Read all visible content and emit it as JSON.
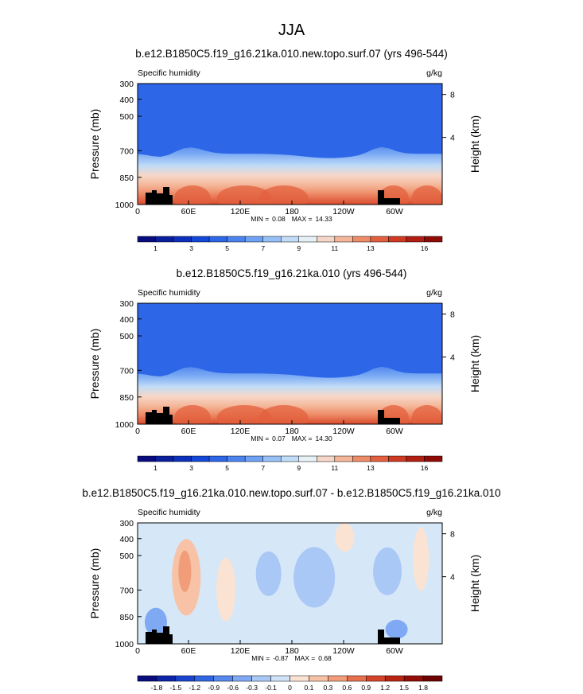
{
  "figure": {
    "title": "JJA",
    "field_label": "Specific humidity",
    "units": "g/kg",
    "ylabel": "Pressure (mb)",
    "ylabel_right": "Height (km)",
    "x_tick_labels": [
      "0",
      "60E",
      "120E",
      "180",
      "120W",
      "60W"
    ],
    "y_tick_labels": [
      "300",
      "400",
      "500",
      "700",
      "850",
      "1000"
    ],
    "height_tick_labels": [
      "8",
      "4"
    ]
  },
  "panels": [
    {
      "title": "b.e12.B1850C5.f19_g16.21ka.010.new.topo.surf.07 (yrs 496-544)",
      "min_label": "MIN =",
      "min_value": "0.08",
      "max_label": "MAX =",
      "max_value": "14.33",
      "colorbar_labels": [
        "1",
        "3",
        "5",
        "7",
        "9",
        "11",
        "13",
        "16"
      ]
    },
    {
      "title": "b.e12.B1850C5.f19_g16.21ka.010 (yrs 496-544)",
      "min_label": "MIN =",
      "min_value": "0.07",
      "max_label": "MAX =",
      "max_value": "14.30",
      "colorbar_labels": [
        "1",
        "3",
        "5",
        "7",
        "9",
        "11",
        "13",
        "16"
      ]
    },
    {
      "title": "b.e12.B1850C5.f19_g16.21ka.010.new.topo.surf.07 - b.e12.B1850C5.f19_g16.21ka.010",
      "min_label": "MIN =",
      "min_value": "-0.87",
      "max_label": "MAX =",
      "max_value": "0.68",
      "colorbar_labels": [
        "-1.8",
        "-1.5",
        "-1.2",
        "-0.9",
        "-0.6",
        "-0.3",
        "-0.1",
        "0",
        "0.1",
        "0.3",
        "0.6",
        "0.9",
        "1.2",
        "1.5",
        "1.8"
      ]
    }
  ],
  "chart_data": [
    {
      "type": "heatmap",
      "title": "b.e12.B1850C5.f19_g16.21ka.010.new.topo.surf.07 (yrs 496-544)",
      "variable": "Specific humidity",
      "units": "g/kg",
      "x_labels": [
        "0",
        "60E",
        "120E",
        "180",
        "120W",
        "60W"
      ],
      "y_levels_mb": [
        300,
        400,
        500,
        700,
        850,
        1000
      ],
      "ylabel": "Pressure (mb)",
      "y2label": "Height (km)",
      "colorbar_ticks": [
        1,
        3,
        5,
        7,
        9,
        11,
        13,
        16
      ],
      "colorbar_colors": [
        "#080c7e",
        "#0a1f9c",
        "#0c30bb",
        "#1448d6",
        "#2d66e6",
        "#4c84ef",
        "#6fa2f4",
        "#97c0f6",
        "#c1dcf7",
        "#e6f1f6",
        "#f6d7c7",
        "#f4b699",
        "#ee8c68",
        "#e3603e",
        "#cf3b22",
        "#b21e12",
        "#8f0b07"
      ],
      "min": 0.08,
      "max": 14.33
    },
    {
      "type": "heatmap",
      "title": "b.e12.B1850C5.f19_g16.21ka.010 (yrs 496-544)",
      "variable": "Specific humidity",
      "units": "g/kg",
      "x_labels": [
        "0",
        "60E",
        "120E",
        "180",
        "120W",
        "60W"
      ],
      "y_levels_mb": [
        300,
        400,
        500,
        700,
        850,
        1000
      ],
      "ylabel": "Pressure (mb)",
      "y2label": "Height (km)",
      "colorbar_ticks": [
        1,
        3,
        5,
        7,
        9,
        11,
        13,
        16
      ],
      "colorbar_colors": [
        "#080c7e",
        "#0a1f9c",
        "#0c30bb",
        "#1448d6",
        "#2d66e6",
        "#4c84ef",
        "#6fa2f4",
        "#97c0f6",
        "#c1dcf7",
        "#e6f1f6",
        "#f6d7c7",
        "#f4b699",
        "#ee8c68",
        "#e3603e",
        "#cf3b22",
        "#b21e12",
        "#8f0b07"
      ],
      "min": 0.07,
      "max": 14.3
    },
    {
      "type": "heatmap",
      "title": "b.e12.B1850C5.f19_g16.21ka.010.new.topo.surf.07 - b.e12.B1850C5.f19_g16.21ka.010",
      "variable": "Specific humidity",
      "units": "g/kg",
      "x_labels": [
        "0",
        "60E",
        "120E",
        "180",
        "120W",
        "60W"
      ],
      "y_levels_mb": [
        300,
        400,
        500,
        700,
        850,
        1000
      ],
      "ylabel": "Pressure (mb)",
      "y2label": "Height (km)",
      "colorbar_ticks": [
        -1.8,
        -1.5,
        -1.2,
        -0.9,
        -0.6,
        -0.3,
        -0.1,
        0,
        0.1,
        0.3,
        0.6,
        0.9,
        1.2,
        1.5,
        1.8
      ],
      "colorbar_colors": [
        "#080c7e",
        "#0c24a8",
        "#1a44cf",
        "#3066e3",
        "#5688ee",
        "#80a9f3",
        "#aac8f6",
        "#d0e3f8",
        "#fbe3d3",
        "#f7c2a6",
        "#f19d79",
        "#e76f4d",
        "#d5442a",
        "#b72412",
        "#930c07",
        "#6e0303"
      ],
      "min": -0.87,
      "max": 0.68
    }
  ]
}
